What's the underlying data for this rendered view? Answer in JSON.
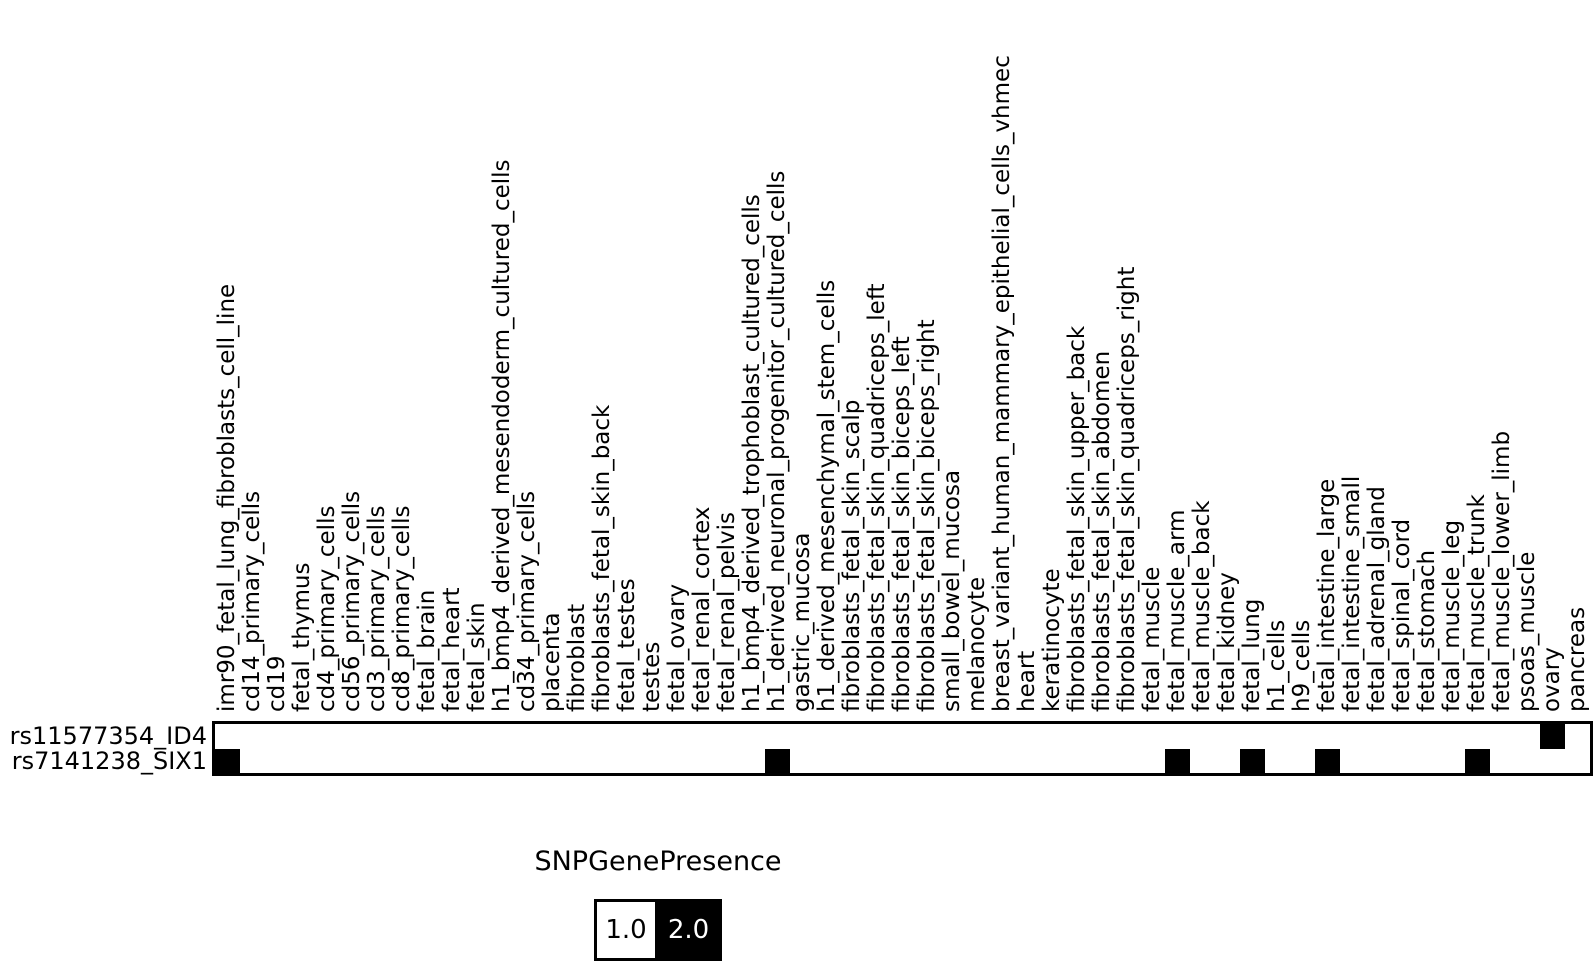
{
  "figure": {
    "background": "#ffffff",
    "foreground": "#000000"
  },
  "chart_data": {
    "type": "heatmap",
    "title": "",
    "legend": {
      "title": "SNPGenePresence",
      "position": "bottom-center",
      "entries": [
        {
          "label": "1.0",
          "color": "#ffffff",
          "text_color": "#000000"
        },
        {
          "label": "2.0",
          "color": "#000000",
          "text_color": "#ffffff"
        }
      ]
    },
    "rows": [
      "rs11577354_ID4",
      "rs7141238_SIX1"
    ],
    "columns": [
      "imr90_fetal_lung_fibroblasts_cell_line",
      "cd14_primary_cells",
      "cd19",
      "fetal_thymus",
      "cd4_primary_cells",
      "cd56_primary_cells",
      "cd3_primary_cells",
      "cd8_primary_cells",
      "fetal_brain",
      "fetal_heart",
      "fetal_skin",
      "h1_bmp4_derived_mesendoderm_cultured_cells",
      "cd34_primary_cells",
      "placenta",
      "fibroblast",
      "fibroblasts_fetal_skin_back",
      "fetal_testes",
      "testes",
      "fetal_ovary",
      "fetal_renal_cortex",
      "fetal_renal_pelvis",
      "h1_bmp4_derived_trophoblast_cultured_cells",
      "h1_derived_neuronal_progenitor_cultured_cells",
      "gastric_mucosa",
      "h1_derived_mesenchymal_stem_cells",
      "fibroblasts_fetal_skin_scalp",
      "fibroblasts_fetal_skin_quadriceps_left",
      "fibroblasts_fetal_skin_biceps_left",
      "fibroblasts_fetal_skin_biceps_right",
      "small_bowel_mucosa",
      "melanocyte",
      "breast_variant_human_mammary_epithelial_cells_vhmec",
      "heart",
      "keratinocyte",
      "fibroblasts_fetal_skin_upper_back",
      "fibroblasts_fetal_skin_abdomen",
      "fibroblasts_fetal_skin_quadriceps_right",
      "fetal_muscle",
      "fetal_muscle_arm",
      "fetal_muscle_back",
      "fetal_kidney",
      "fetal_lung",
      "h1_cells",
      "h9_cells",
      "fetal_intestine_large",
      "fetal_intestine_small",
      "fetal_adrenal_gland",
      "fetal_spinal_cord",
      "fetal_stomach",
      "fetal_muscle_leg",
      "fetal_muscle_trunk",
      "fetal_muscle_lower_limb",
      "psoas_muscle",
      "ovary",
      "pancreas"
    ],
    "values": [
      [
        1,
        1,
        1,
        1,
        1,
        1,
        1,
        1,
        1,
        1,
        1,
        1,
        1,
        1,
        1,
        1,
        1,
        1,
        1,
        1,
        1,
        1,
        1,
        1,
        1,
        1,
        1,
        1,
        1,
        1,
        1,
        1,
        1,
        1,
        1,
        1,
        1,
        1,
        1,
        1,
        1,
        1,
        1,
        1,
        1,
        1,
        1,
        1,
        1,
        1,
        1,
        1,
        1,
        2,
        1
      ],
      [
        2,
        1,
        1,
        1,
        1,
        1,
        1,
        1,
        1,
        1,
        1,
        1,
        1,
        1,
        1,
        1,
        1,
        1,
        1,
        1,
        1,
        1,
        2,
        1,
        1,
        1,
        1,
        1,
        1,
        1,
        1,
        1,
        1,
        1,
        1,
        1,
        1,
        1,
        2,
        1,
        1,
        2,
        1,
        1,
        2,
        1,
        1,
        1,
        1,
        1,
        2,
        1,
        1,
        1,
        1
      ]
    ],
    "value_colors": {
      "1": "#ffffff",
      "2": "#000000"
    },
    "grid_border_color": "#000000"
  }
}
